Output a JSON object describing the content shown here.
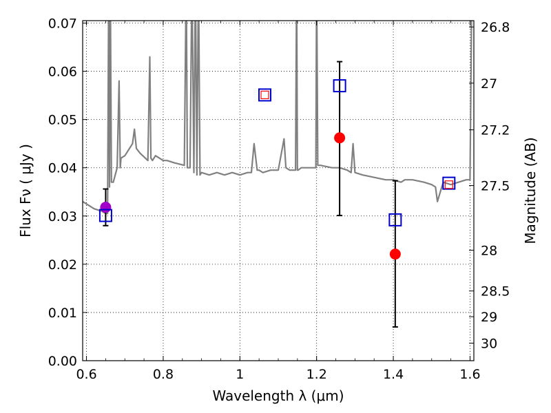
{
  "chart_data": {
    "type": "scatter",
    "xlabel": "Wavelength  λ (μm)",
    "ylabel": "Flux  Fν  ( μJy )",
    "y2label": "Magnitude (AB)",
    "xlim": [
      0.59,
      1.61
    ],
    "ylim": [
      0.0,
      0.0705
    ],
    "x_ticks": [
      {
        "value": 0.6,
        "label": "0.6"
      },
      {
        "value": 0.8,
        "label": "0.8"
      },
      {
        "value": 1.0,
        "label": "1"
      },
      {
        "value": 1.2,
        "label": "1.2"
      },
      {
        "value": 1.4,
        "label": "1.4"
      },
      {
        "value": 1.6,
        "label": "1.6"
      }
    ],
    "y_ticks": [
      {
        "value": 0.0,
        "label": "0.00"
      },
      {
        "value": 0.01,
        "label": "0.01"
      },
      {
        "value": 0.02,
        "label": "0.02"
      },
      {
        "value": 0.03,
        "label": "0.03"
      },
      {
        "value": 0.04,
        "label": "0.04"
      },
      {
        "value": 0.05,
        "label": "0.05"
      },
      {
        "value": 0.06,
        "label": "0.06"
      },
      {
        "value": 0.07,
        "label": "0.07"
      }
    ],
    "y2_ticks": [
      {
        "mag": 26.8,
        "label": "26.8"
      },
      {
        "mag": 27.0,
        "label": "27"
      },
      {
        "mag": 27.2,
        "label": "27.2"
      },
      {
        "mag": 27.5,
        "label": "27.5"
      },
      {
        "mag": 28.0,
        "label": "28"
      },
      {
        "mag": 28.5,
        "label": "28.5"
      },
      {
        "mag": 29.0,
        "label": "29"
      },
      {
        "mag": 30.0,
        "label": "30"
      }
    ],
    "grid": true,
    "colors": {
      "spectrum": "#808080",
      "observed": "#ff0000",
      "observed_purple": "#a000c8",
      "model_box": "#0000cc",
      "model_inner": "#ff0000",
      "errorbar": "#000000"
    },
    "spectrum": {
      "x": [
        0.59,
        0.6,
        0.62,
        0.64,
        0.65,
        0.655,
        0.658,
        0.66,
        0.662,
        0.665,
        0.67,
        0.68,
        0.685,
        0.688,
        0.69,
        0.7,
        0.72,
        0.725,
        0.73,
        0.74,
        0.76,
        0.765,
        0.768,
        0.772,
        0.78,
        0.79,
        0.8,
        0.81,
        0.83,
        0.855,
        0.86,
        0.863,
        0.866,
        0.87,
        0.875,
        0.88,
        0.884,
        0.888,
        0.892,
        0.896,
        0.9,
        0.92,
        0.94,
        0.96,
        0.98,
        1.0,
        1.02,
        1.03,
        1.037,
        1.045,
        1.05,
        1.06,
        1.08,
        1.1,
        1.115,
        1.12,
        1.13,
        1.145,
        1.148,
        1.15,
        1.152,
        1.16,
        1.19,
        1.198,
        1.2,
        1.203,
        1.21,
        1.24,
        1.26,
        1.28,
        1.29,
        1.295,
        1.3,
        1.32,
        1.35,
        1.38,
        1.4,
        1.42,
        1.43,
        1.45,
        1.48,
        1.5,
        1.51,
        1.515,
        1.53,
        1.55,
        1.57,
        1.59,
        1.6,
        1.605,
        1.61
      ],
      "y": [
        0.033,
        0.0325,
        0.0315,
        0.031,
        0.0305,
        0.0305,
        0.08,
        0.036,
        0.08,
        0.037,
        0.037,
        0.04,
        0.058,
        0.04,
        0.042,
        0.0425,
        0.045,
        0.048,
        0.044,
        0.043,
        0.0415,
        0.063,
        0.042,
        0.0415,
        0.0425,
        0.042,
        0.0415,
        0.0415,
        0.041,
        0.0405,
        0.08,
        0.04,
        0.04,
        0.04,
        0.08,
        0.039,
        0.08,
        0.0385,
        0.08,
        0.0385,
        0.039,
        0.0385,
        0.039,
        0.0385,
        0.039,
        0.0385,
        0.039,
        0.039,
        0.045,
        0.0395,
        0.0395,
        0.039,
        0.0395,
        0.0395,
        0.046,
        0.04,
        0.0395,
        0.0395,
        0.08,
        0.0395,
        0.0395,
        0.04,
        0.04,
        0.04,
        0.08,
        0.0405,
        0.0405,
        0.04,
        0.04,
        0.0395,
        0.039,
        0.045,
        0.039,
        0.0385,
        0.038,
        0.0375,
        0.0375,
        0.037,
        0.0375,
        0.0375,
        0.037,
        0.0365,
        0.036,
        0.033,
        0.037,
        0.0365,
        0.037,
        0.0375,
        0.0375,
        0.08,
        0.08
      ]
    },
    "observed": [
      {
        "x": 0.65,
        "y": 0.0318,
        "err_lo": 0.028,
        "err_hi": 0.0356,
        "color": "#a000c8"
      },
      {
        "x": 1.26,
        "y": 0.0462,
        "err_lo": 0.0301,
        "err_hi": 0.062,
        "color": "#ff0000"
      },
      {
        "x": 1.405,
        "y": 0.0221,
        "err_lo": 0.007,
        "err_hi": 0.0373,
        "color": "#ff0000"
      }
    ],
    "model_points": [
      {
        "x": 0.65,
        "y": 0.0301
      },
      {
        "x": 1.065,
        "y": 0.0551
      },
      {
        "x": 1.26,
        "y": 0.057
      },
      {
        "x": 1.405,
        "y": 0.0292
      },
      {
        "x": 1.545,
        "y": 0.0368
      }
    ],
    "model_inner_points": [
      {
        "x": 1.065,
        "y": 0.0551
      },
      {
        "x": 1.545,
        "y": 0.0365
      }
    ]
  }
}
